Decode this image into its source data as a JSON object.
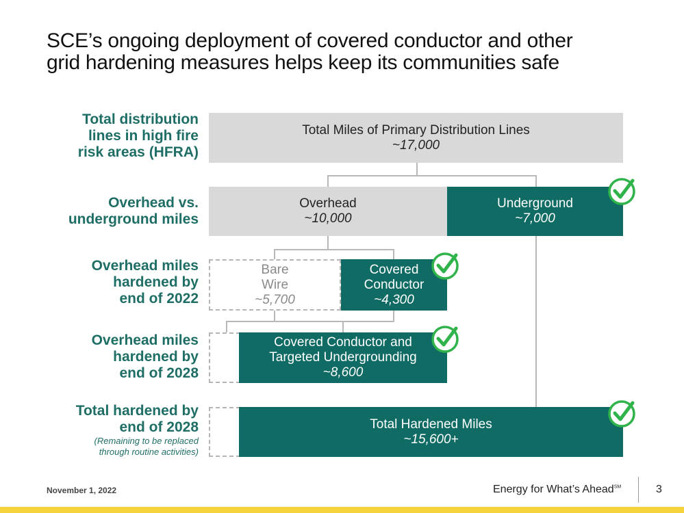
{
  "title": {
    "line1": "SCE’s ongoing deployment of covered conductor and other",
    "line2": "grid hardening measures helps keep its communities safe"
  },
  "rows": {
    "r1": {
      "l1": "Total distribution",
      "l2": "lines in high fire",
      "l3": "risk areas (HFRA)"
    },
    "r2": {
      "l1": "Overhead vs.",
      "l2": "underground miles"
    },
    "r3": {
      "l1": "Overhead miles",
      "l2": "hardened by",
      "l3": "end of 2022"
    },
    "r4": {
      "l1": "Overhead miles",
      "l2": "hardened by",
      "l3": "end of 2028"
    },
    "r5": {
      "l1": "Total hardened by",
      "l2": "end of 2028",
      "note1": "(Remaining to be replaced",
      "note2": "through routine activities)"
    }
  },
  "boxes": {
    "total": {
      "label": "Total Miles of Primary Distribution Lines",
      "value": "~17,000"
    },
    "overhead": {
      "label": "Overhead",
      "value": "~10,000"
    },
    "underground": {
      "label": "Underground",
      "value": "~7,000"
    },
    "bare_wire": {
      "label1": "Bare",
      "label2": "Wire",
      "value": "~5,700"
    },
    "covered_conductor": {
      "label1": "Covered",
      "label2": "Conductor",
      "value": "~4,300"
    },
    "cc_targeted": {
      "label1": "Covered Conductor and",
      "label2": "Targeted Undergrounding",
      "value": "~8,600"
    },
    "total_hardened": {
      "label": "Total Hardened Miles",
      "value": "~15,600+"
    }
  },
  "icons": {
    "check": "check-circle-icon",
    "check_color": "#2fb34a"
  },
  "colors": {
    "teal": "#0f6b63",
    "gray": "#d9d9d9",
    "label": "#1f6e66",
    "bar": "#f5d33d"
  },
  "footer": {
    "date": "November 1, 2022",
    "tagline": "Energy for What’s Ahead",
    "tagline_mark": "SM",
    "page": "3"
  }
}
